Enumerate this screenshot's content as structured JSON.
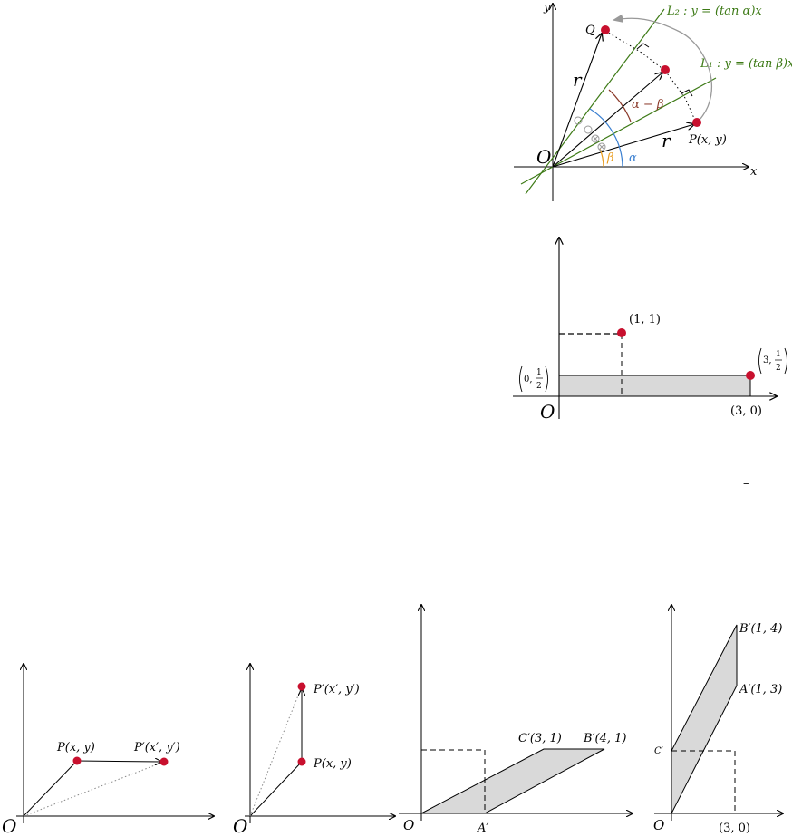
{
  "rotation": {
    "axis_y": "y",
    "axis_x": "x",
    "origin": "O",
    "point_q": "Q",
    "point_p": "P(x, y)",
    "radius_upper": "r",
    "radius_lower": "r",
    "line_l2": "L₂ : y = (tan α)x",
    "line_l1": "L₁ : y = (tan β)x",
    "angle_diff": "α − β",
    "angle_alpha": "α",
    "angle_beta": "β",
    "colors": {
      "lines": "#3d7a16",
      "points": "#c8102e",
      "arc": "#999999"
    }
  },
  "rect_plot": {
    "origin": "O",
    "point_11": "(1,  1)",
    "point_30": "(3,  0)",
    "point_0half_a": "0,",
    "point_0half_n": "1",
    "point_0half_d": "2",
    "point_3half_a": "3,",
    "point_3half_n": "1",
    "point_3half_d": "2",
    "fill_color": "#d9d9d9"
  },
  "small_mark": "–",
  "shear_h": {
    "origin": "O",
    "point_p": "P(x,  y)",
    "point_p_prime": "P′(x′,  y′)"
  },
  "shear_v": {
    "origin": "O",
    "point_p": "P(x,  y)",
    "point_p_prime": "P′(x′,  y′)"
  },
  "para_h": {
    "origin": "O",
    "point_a": "A′",
    "point_b": "B′(4,  1)",
    "point_c": "C′(3,  1)"
  },
  "para_v": {
    "origin": "O",
    "point_a": "A′(1,  3)",
    "point_b": "B′(1,  4)",
    "point_c": "C′",
    "point_30": "(3,  0)"
  }
}
